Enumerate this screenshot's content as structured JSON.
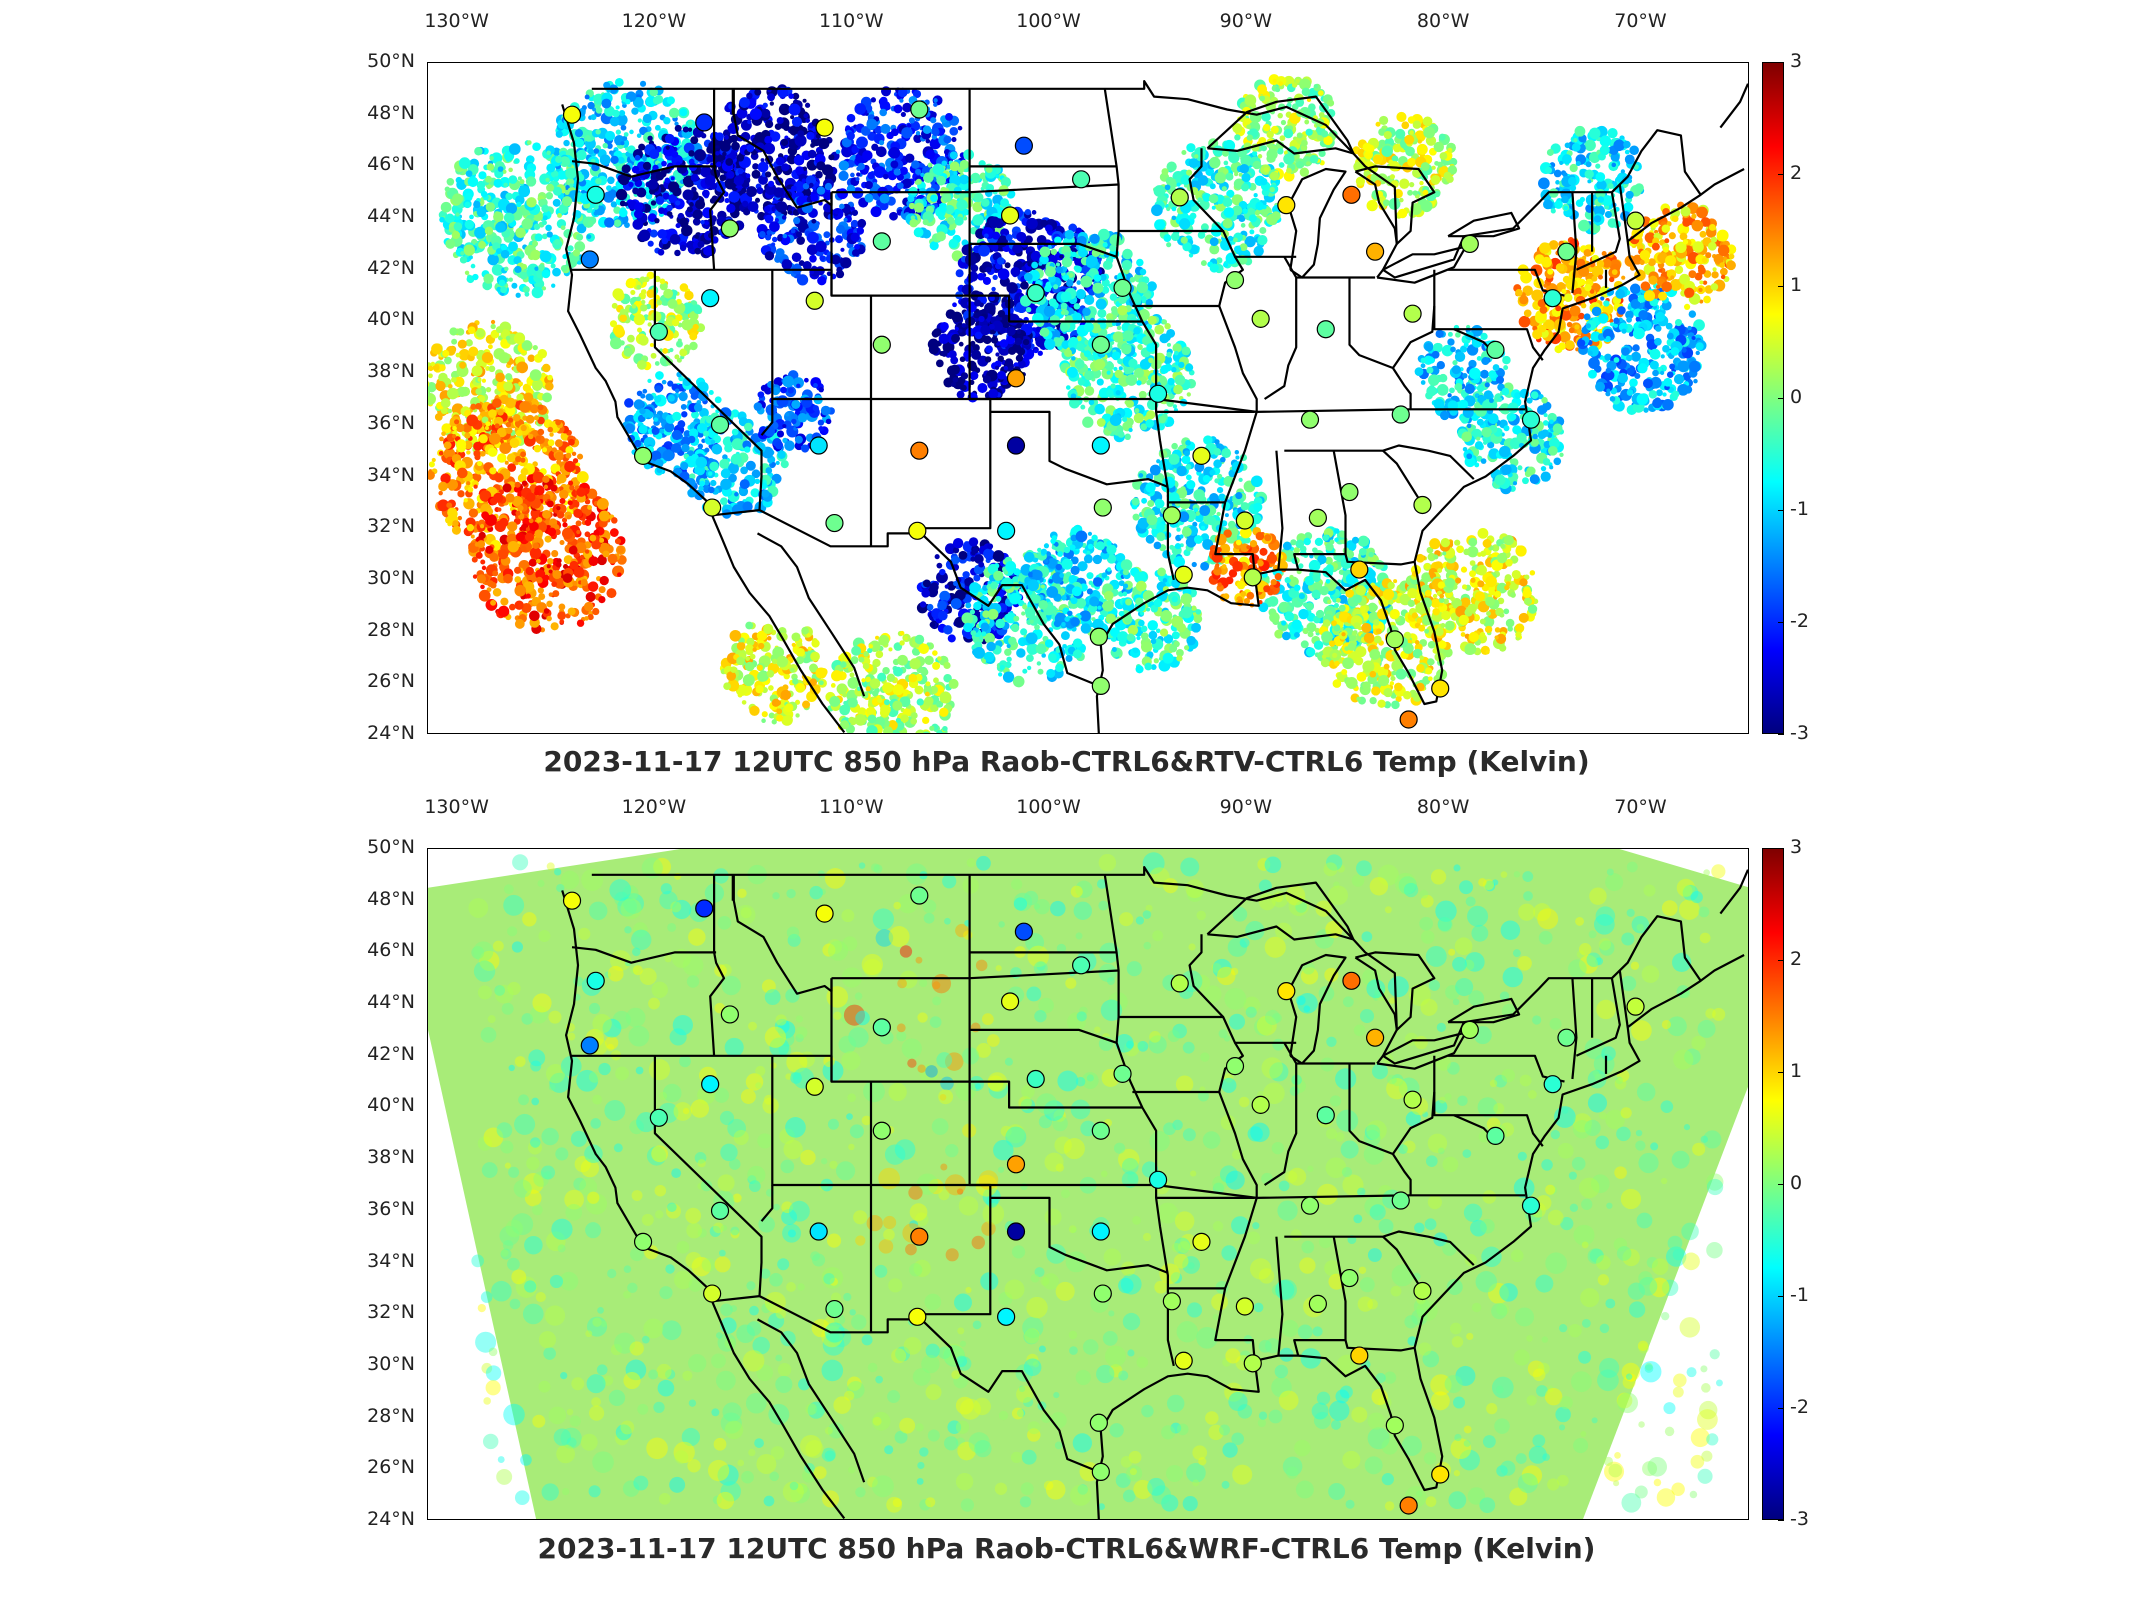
{
  "colors": {
    "colormap": [
      "#00007f",
      "#0000ff",
      "#007fff",
      "#00ffff",
      "#7fff7f",
      "#ffff00",
      "#ff7f00",
      "#ff0000",
      "#7f0000"
    ],
    "outline": "#000000",
    "background_field": "#a8ec78"
  },
  "lon_ticks": [
    "130°W",
    "120°W",
    "110°W",
    "100°W",
    "90°W",
    "80°W",
    "70°W"
  ],
  "lat_ticks": [
    "50°N",
    "48°N",
    "46°N",
    "44°N",
    "42°N",
    "40°N",
    "38°N",
    "36°N",
    "34°N",
    "32°N",
    "30°N",
    "28°N",
    "26°N",
    "24°N"
  ],
  "colorbar": {
    "ticks": [
      "3",
      "2",
      "1",
      "0",
      "-1",
      "-2",
      "-3"
    ],
    "min": -3,
    "max": 3
  },
  "panels": [
    {
      "title": "2023-11-17 12UTC 850 hPa Raob-CTRL6&RTV-CTRL6 Temp (Kelvin)",
      "field": "satellite retrieval swaths (patchy)"
    },
    {
      "title": "2023-11-17 12UTC 850 hPa Raob-CTRL6&WRF-CTRL6 Temp (Kelvin)",
      "field": "model domain (full coverage)"
    }
  ],
  "stations": [
    {
      "lon": -124.2,
      "lat": 48.0,
      "value": 0.7
    },
    {
      "lon": -117.5,
      "lat": 47.7,
      "value": -2.0
    },
    {
      "lon": -111.4,
      "lat": 47.5,
      "value": 0.7
    },
    {
      "lon": -106.6,
      "lat": 48.2,
      "value": -0.1
    },
    {
      "lon": -101.3,
      "lat": 46.8,
      "value": -1.8
    },
    {
      "lon": -123.0,
      "lat": 44.9,
      "value": -0.6
    },
    {
      "lon": -116.2,
      "lat": 43.6,
      "value": 0.1
    },
    {
      "lon": -108.5,
      "lat": 43.1,
      "value": -0.2
    },
    {
      "lon": -102.0,
      "lat": 44.1,
      "value": 0.6
    },
    {
      "lon": -98.4,
      "lat": 45.5,
      "value": -0.3
    },
    {
      "lon": -93.4,
      "lat": 44.8,
      "value": 0.3
    },
    {
      "lon": -88.0,
      "lat": 44.5,
      "value": 0.9
    },
    {
      "lon": -84.7,
      "lat": 44.9,
      "value": 1.6
    },
    {
      "lon": -123.3,
      "lat": 42.4,
      "value": -1.5
    },
    {
      "lon": -117.2,
      "lat": 40.9,
      "value": -0.8
    },
    {
      "lon": -111.9,
      "lat": 40.8,
      "value": 0.5
    },
    {
      "lon": -100.7,
      "lat": 41.1,
      "value": -0.4
    },
    {
      "lon": -96.3,
      "lat": 41.3,
      "value": -0.1
    },
    {
      "lon": -90.6,
      "lat": 41.6,
      "value": 0.1
    },
    {
      "lon": -83.5,
      "lat": 42.7,
      "value": 1.2
    },
    {
      "lon": -78.7,
      "lat": 43.0,
      "value": 0.2
    },
    {
      "lon": -73.8,
      "lat": 42.7,
      "value": -0.1
    },
    {
      "lon": -70.3,
      "lat": 43.9,
      "value": 0.4
    },
    {
      "lon": -119.8,
      "lat": 39.6,
      "value": -0.3
    },
    {
      "lon": -108.5,
      "lat": 39.1,
      "value": 0.1
    },
    {
      "lon": -89.3,
      "lat": 40.1,
      "value": 0.3
    },
    {
      "lon": -86.0,
      "lat": 39.7,
      "value": -0.2
    },
    {
      "lon": -81.6,
      "lat": 40.3,
      "value": 0.3
    },
    {
      "lon": -77.4,
      "lat": 38.9,
      "value": -0.2
    },
    {
      "lon": -74.5,
      "lat": 40.9,
      "value": -0.5
    },
    {
      "lon": -101.7,
      "lat": 37.8,
      "value": 1.3
    },
    {
      "lon": -97.4,
      "lat": 39.1,
      "value": -0.1
    },
    {
      "lon": -94.5,
      "lat": 37.2,
      "value": -0.6
    },
    {
      "lon": -116.7,
      "lat": 36.0,
      "value": -0.2
    },
    {
      "lon": -111.7,
      "lat": 35.2,
      "value": -0.9
    },
    {
      "lon": -106.6,
      "lat": 35.0,
      "value": 1.5
    },
    {
      "lon": -101.7,
      "lat": 35.2,
      "value": -2.8
    },
    {
      "lon": -97.4,
      "lat": 35.2,
      "value": -0.8
    },
    {
      "lon": -92.3,
      "lat": 34.8,
      "value": 0.6
    },
    {
      "lon": -86.8,
      "lat": 36.2,
      "value": 0.1
    },
    {
      "lon": -82.2,
      "lat": 36.4,
      "value": -0.1
    },
    {
      "lon": -75.6,
      "lat": 36.2,
      "value": -0.5
    },
    {
      "lon": -120.6,
      "lat": 34.8,
      "value": 0.1
    },
    {
      "lon": -117.1,
      "lat": 32.8,
      "value": 0.5
    },
    {
      "lon": -110.9,
      "lat": 32.2,
      "value": -0.1
    },
    {
      "lon": -106.7,
      "lat": 31.9,
      "value": 0.7
    },
    {
      "lon": -102.2,
      "lat": 31.9,
      "value": -0.8
    },
    {
      "lon": -97.3,
      "lat": 32.8,
      "value": 0.1
    },
    {
      "lon": -93.8,
      "lat": 32.5,
      "value": 0.2
    },
    {
      "lon": -90.1,
      "lat": 32.3,
      "value": 0.5
    },
    {
      "lon": -86.4,
      "lat": 32.4,
      "value": 0.2
    },
    {
      "lon": -84.8,
      "lat": 33.4,
      "value": 0.1
    },
    {
      "lon": -81.1,
      "lat": 32.9,
      "value": 0.3
    },
    {
      "lon": -93.2,
      "lat": 30.2,
      "value": 0.6
    },
    {
      "lon": -89.7,
      "lat": 30.1,
      "value": 0.3
    },
    {
      "lon": -84.3,
      "lat": 30.4,
      "value": 1.0
    },
    {
      "lon": -97.5,
      "lat": 27.8,
      "value": 0.1
    },
    {
      "lon": -82.5,
      "lat": 27.7,
      "value": 0.2
    },
    {
      "lon": -80.2,
      "lat": 25.8,
      "value": 0.9
    },
    {
      "lon": -97.4,
      "lat": 25.9,
      "value": 0.1
    },
    {
      "lon": -81.8,
      "lat": 24.6,
      "value": 1.5
    }
  ]
}
